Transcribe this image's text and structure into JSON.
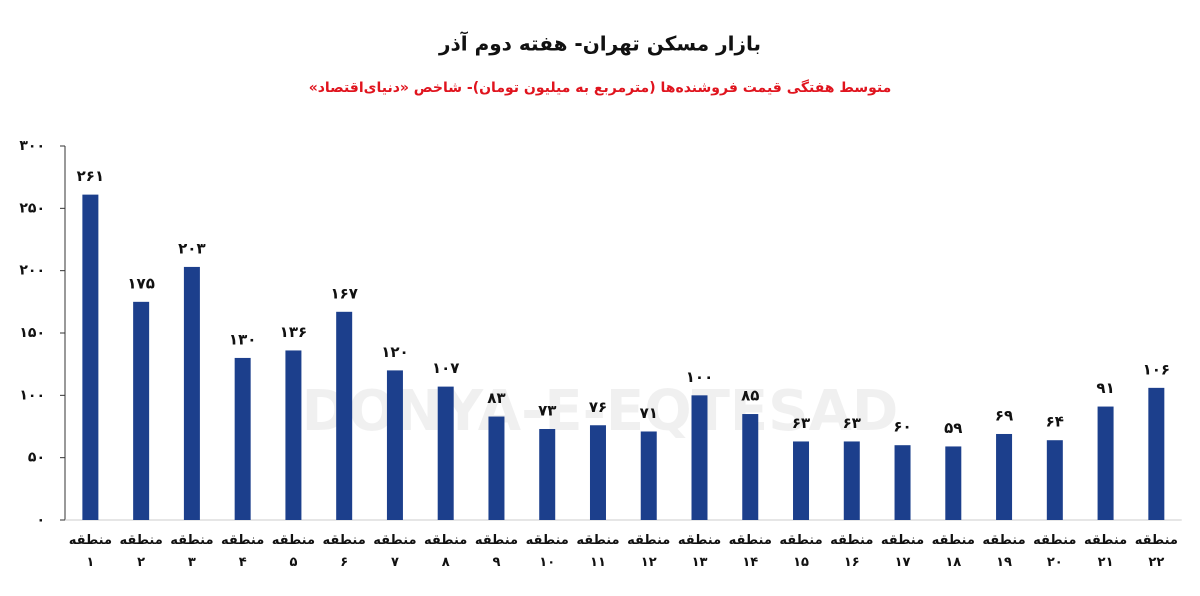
{
  "chart_data": {
    "type": "bar",
    "title": "بازار مسکن تهران- هفته دوم آذر",
    "subtitle": "متوسط هفتگی قیمت فروشنده‌ها (مترمربع به میلیون تومان)- شاخص «دنیای‌اقتصاد»",
    "watermark": "DONYA-E-EQTESAD",
    "categories": [
      "منطقه ۱",
      "منطقه ۲",
      "منطقه ۳",
      "منطقه ۴",
      "منطقه ۵",
      "منطقه ۶",
      "منطقه ۷",
      "منطقه ۸",
      "منطقه ۹",
      "منطقه ۱۰",
      "منطقه ۱۱",
      "منطقه ۱۲",
      "منطقه ۱۳",
      "منطقه ۱۴",
      "منطقه ۱۵",
      "منطقه ۱۶",
      "منطقه ۱۷",
      "منطقه ۱۸",
      "منطقه ۱۹",
      "منطقه ۲۰",
      "منطقه ۲۱",
      "منطقه ۲۲"
    ],
    "values": [
      261,
      175,
      203,
      130,
      136,
      167,
      120,
      107,
      83,
      73,
      76,
      71,
      100,
      85,
      63,
      63,
      60,
      59,
      69,
      64,
      91,
      106
    ],
    "value_labels": [
      "۲۶۱",
      "۱۷۵",
      "۲۰۳",
      "۱۳۰",
      "۱۳۶",
      "۱۶۷",
      "۱۲۰",
      "۱۰۷",
      "۸۳",
      "۷۳",
      "۷۶",
      "۷۱",
      "۱۰۰",
      "۸۵",
      "۶۳",
      "۶۳",
      "۶۰",
      "۵۹",
      "۶۹",
      "۶۴",
      "۹۱",
      "۱۰۶"
    ],
    "color": "#1c3f8c",
    "ylim": [
      0,
      300
    ],
    "yticks": [
      {
        "value": 0,
        "label": "۰"
      },
      {
        "value": 50,
        "label": "۵۰"
      },
      {
        "value": 100,
        "label": "۱۰۰"
      },
      {
        "value": 150,
        "label": "۱۵۰"
      },
      {
        "value": 200,
        "label": "۲۰۰"
      },
      {
        "value": 250,
        "label": "۲۵۰"
      },
      {
        "value": 300,
        "label": "۳۰۰"
      }
    ],
    "grid": false
  }
}
